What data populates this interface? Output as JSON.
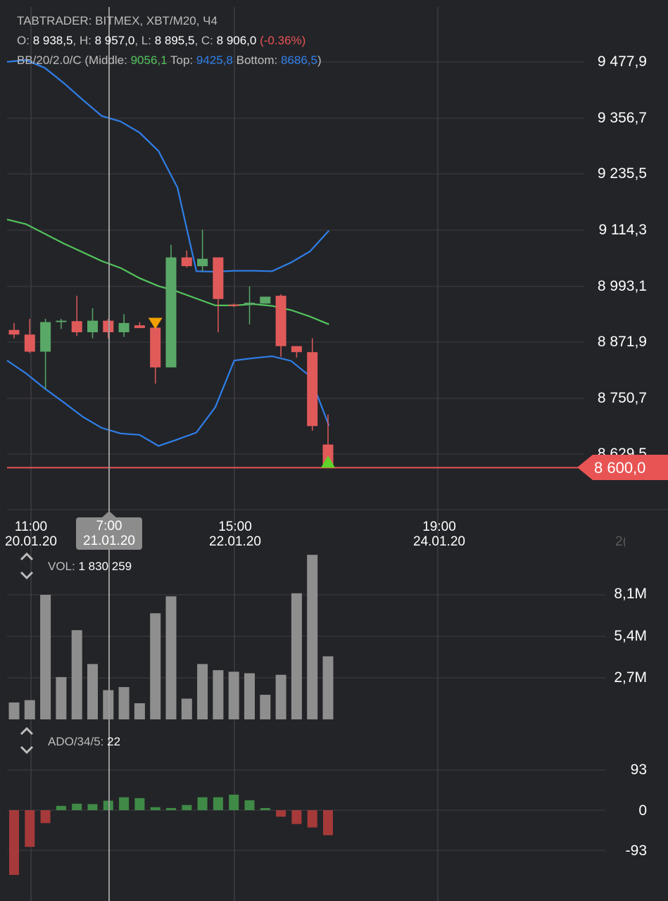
{
  "header": {
    "line1": "TABTRADER: BITMEX, XBT/M20, Ч4",
    "open_label": "O:",
    "open": "8 938,5",
    "high_label": "H:",
    "high": "8 957,0",
    "low_label": "L:",
    "low": "8 895,5",
    "close_label": "C:",
    "close": "8 906,0",
    "change": "(-0.36%)",
    "bb_prefix": "BB/20/2.0/C (Middle:",
    "bb_middle": "9056,1",
    "bb_top_label": "Top:",
    "bb_top": "9425,8",
    "bb_bottom_label": "Bottom:",
    "bb_bottom": "8686,5",
    "bb_suffix": ")"
  },
  "current_price": "8 600,0",
  "price_axis_labels": [
    "9 477,9",
    "9 356,7",
    "9 235,5",
    "9 114,3",
    "8 993,1",
    "8 871,9",
    "8 750,7",
    "8 629,5"
  ],
  "time_axis": [
    {
      "time": "11:00",
      "date": "20.01.20",
      "selected": false
    },
    {
      "time": "7:00",
      "date": "21.01.20",
      "selected": true
    },
    {
      "time": "15:00",
      "date": "22.01.20",
      "selected": false
    },
    {
      "time": "19:00",
      "date": "24.01.20",
      "selected": false
    }
  ],
  "time_axis_clipped": "2(",
  "volume_panel": {
    "label": "VOL:",
    "value": "1 830 259",
    "axis_labels": [
      "8,1M",
      "5,4M",
      "2,7M"
    ]
  },
  "ado_panel": {
    "label": "ADO/34/5:",
    "value": "22",
    "axis_labels": [
      "93",
      "0",
      "-93"
    ]
  },
  "colors": {
    "up": "#5aa867",
    "down": "#e05a5a",
    "bb_band": "#2f7fe8",
    "bb_middle": "#53c35c",
    "volume": "#8e8e8e",
    "ado_up": "#3f8a46",
    "ado_down": "#a63a3a",
    "price_line": "#e85454"
  },
  "chart_data": [
    {
      "type": "candlestick",
      "title": "TABTRADER: BITMEX, XBT/M20, Ч4",
      "y_range": [
        8600,
        9478
      ],
      "candles": [
        {
          "o": 8898,
          "h": 8913,
          "l": 8880,
          "c": 8888
        },
        {
          "o": 8888,
          "h": 8922,
          "l": 8848,
          "c": 8851
        },
        {
          "o": 8851,
          "h": 8922,
          "l": 8770,
          "c": 8915
        },
        {
          "o": 8915,
          "h": 8922,
          "l": 8900,
          "c": 8918
        },
        {
          "o": 8917,
          "h": 8972,
          "l": 8885,
          "c": 8893
        },
        {
          "o": 8893,
          "h": 8945,
          "l": 8880,
          "c": 8918
        },
        {
          "o": 8918,
          "h": 8922,
          "l": 8880,
          "c": 8893
        },
        {
          "o": 8893,
          "h": 8932,
          "l": 8883,
          "c": 8913
        },
        {
          "o": 8908,
          "h": 8915,
          "l": 8905,
          "c": 8902
        },
        {
          "o": 8903,
          "h": 8920,
          "l": 8782,
          "c": 8817
        },
        {
          "o": 8817,
          "h": 9082,
          "l": 8817,
          "c": 9055
        },
        {
          "o": 9055,
          "h": 9070,
          "l": 9033,
          "c": 9036
        },
        {
          "o": 9036,
          "h": 9115,
          "l": 9025,
          "c": 9052
        },
        {
          "o": 9055,
          "h": 9055,
          "l": 8893,
          "c": 8965
        },
        {
          "o": 8953,
          "h": 8955,
          "l": 8948,
          "c": 8952
        },
        {
          "o": 8953,
          "h": 8992,
          "l": 8910,
          "c": 8957
        },
        {
          "o": 8955,
          "h": 8970,
          "l": 8955,
          "c": 8970
        },
        {
          "o": 8972,
          "h": 8975,
          "l": 8840,
          "c": 8863
        },
        {
          "o": 8863,
          "h": 8863,
          "l": 8838,
          "c": 8850
        },
        {
          "o": 8850,
          "h": 8880,
          "l": 8680,
          "c": 8690
        },
        {
          "o": 8650,
          "h": 8715,
          "l": 8600,
          "c": 8606
        }
      ],
      "bollinger": {
        "top": [
          9478,
          9482,
          9465,
          9432,
          9396,
          9361,
          9349,
          9325,
          9285,
          9206,
          9025,
          9024,
          9026,
          9026,
          9025,
          9044,
          9068,
          9113
        ],
        "middle": [
          9137,
          9127,
          9106,
          9085,
          9066,
          9047,
          9032,
          9010,
          8993,
          8981,
          8966,
          8951,
          8951,
          8954,
          8950,
          8941,
          8927,
          8910
        ],
        "bottom": [
          8832,
          8804,
          8771,
          8741,
          8710,
          8686,
          8674,
          8671,
          8647,
          8661,
          8676,
          8731,
          8832,
          8837,
          8841,
          8831,
          8798,
          8691
        ]
      },
      "markers": [
        {
          "index": 9,
          "type": "sell"
        },
        {
          "index": 20,
          "type": "buy"
        }
      ],
      "current_price": 8600
    },
    {
      "type": "bar",
      "title": "VOL",
      "y_range": [
        0,
        10500000
      ],
      "values": [
        1100000,
        1250000,
        8100000,
        2750000,
        5800000,
        3600000,
        1900000,
        2100000,
        1050000,
        6900000,
        8000000,
        1350000,
        3600000,
        3200000,
        3100000,
        3000000,
        1600000,
        2900000,
        8200000,
        10700000,
        4100000
      ]
    },
    {
      "type": "bar",
      "title": "ADO/34/5",
      "y_range": [
        -160,
        160
      ],
      "values": [
        -150,
        -85,
        -30,
        10,
        15,
        14,
        22,
        30,
        28,
        7,
        5,
        12,
        30,
        30,
        36,
        23,
        5,
        -15,
        -32,
        -40,
        -58
      ]
    }
  ]
}
